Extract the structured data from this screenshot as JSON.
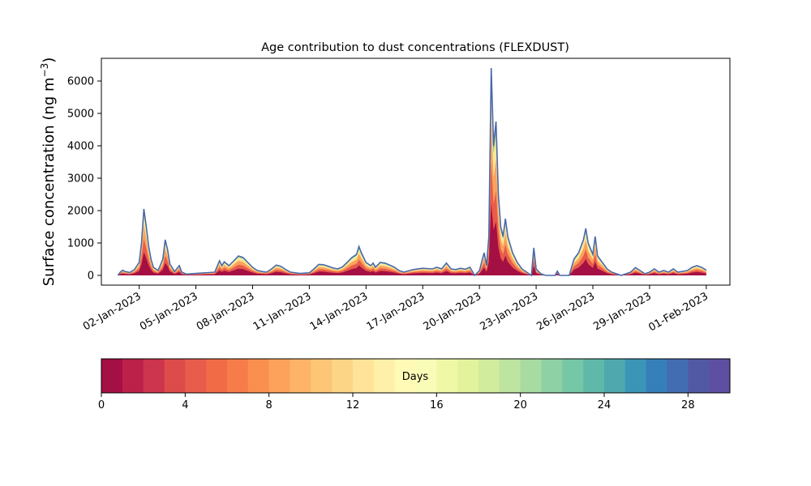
{
  "chart_data": {
    "type": "area",
    "title": "Age contribution to dust concentrations (FLEXDUST)",
    "xlabel": "",
    "ylabel_main": "Surface concentration (ng m",
    "ylabel_sup": "−3",
    "ylabel_close": ")",
    "ylim": [
      -300,
      6700
    ],
    "xlim": [
      "2022-12-31T00:00",
      "2023-02-02T06:00"
    ],
    "yticks": [
      0,
      1000,
      2000,
      3000,
      4000,
      5000,
      6000
    ],
    "xticks": [
      {
        "date": "2023-01-02",
        "label": "02-Jan-2023"
      },
      {
        "date": "2023-01-05",
        "label": "05-Jan-2023"
      },
      {
        "date": "2023-01-08",
        "label": "08-Jan-2023"
      },
      {
        "date": "2023-01-11",
        "label": "11-Jan-2023"
      },
      {
        "date": "2023-01-14",
        "label": "14-Jan-2023"
      },
      {
        "date": "2023-01-17",
        "label": "17-Jan-2023"
      },
      {
        "date": "2023-01-20",
        "label": "20-Jan-2023"
      },
      {
        "date": "2023-01-23",
        "label": "23-Jan-2023"
      },
      {
        "date": "2023-01-26",
        "label": "26-Jan-2023"
      },
      {
        "date": "2023-01-29",
        "label": "29-Jan-2023"
      },
      {
        "date": "2023-02-01",
        "label": "01-Feb-2023"
      }
    ],
    "total_series": {
      "name": "",
      "points": [
        [
          "2022-12-31T21:00",
          0
        ],
        [
          "2023-01-01T00:00",
          100
        ],
        [
          "2023-01-01T03:00",
          160
        ],
        [
          "2023-01-01T06:00",
          120
        ],
        [
          "2023-01-01T12:00",
          90
        ],
        [
          "2023-01-01T18:00",
          180
        ],
        [
          "2023-01-02T00:00",
          400
        ],
        [
          "2023-01-02T03:00",
          1000
        ],
        [
          "2023-01-02T06:00",
          2050
        ],
        [
          "2023-01-02T09:00",
          1500
        ],
        [
          "2023-01-02T12:00",
          900
        ],
        [
          "2023-01-02T15:00",
          500
        ],
        [
          "2023-01-02T18:00",
          250
        ],
        [
          "2023-01-03T00:00",
          150
        ],
        [
          "2023-01-03T06:00",
          500
        ],
        [
          "2023-01-03T09:00",
          1100
        ],
        [
          "2023-01-03T12:00",
          800
        ],
        [
          "2023-01-03T15:00",
          350
        ],
        [
          "2023-01-03T21:00",
          120
        ],
        [
          "2023-01-04T03:00",
          300
        ],
        [
          "2023-01-04T06:00",
          100
        ],
        [
          "2023-01-04T12:00",
          40
        ],
        [
          "2023-01-05T00:00",
          60
        ],
        [
          "2023-01-05T12:00",
          80
        ],
        [
          "2023-01-06T00:00",
          100
        ],
        [
          "2023-01-06T06:00",
          450
        ],
        [
          "2023-01-06T09:00",
          300
        ],
        [
          "2023-01-06T12:00",
          420
        ],
        [
          "2023-01-06T18:00",
          300
        ],
        [
          "2023-01-07T00:00",
          450
        ],
        [
          "2023-01-07T06:00",
          600
        ],
        [
          "2023-01-07T12:00",
          550
        ],
        [
          "2023-01-07T18:00",
          400
        ],
        [
          "2023-01-08T00:00",
          250
        ],
        [
          "2023-01-08T06:00",
          150
        ],
        [
          "2023-01-08T12:00",
          120
        ],
        [
          "2023-01-08T18:00",
          100
        ],
        [
          "2023-01-09T00:00",
          200
        ],
        [
          "2023-01-09T06:00",
          320
        ],
        [
          "2023-01-09T12:00",
          280
        ],
        [
          "2023-01-09T18:00",
          180
        ],
        [
          "2023-01-10T00:00",
          100
        ],
        [
          "2023-01-10T12:00",
          60
        ],
        [
          "2023-01-11T00:00",
          80
        ],
        [
          "2023-01-11T06:00",
          200
        ],
        [
          "2023-01-11T12:00",
          340
        ],
        [
          "2023-01-11T18:00",
          330
        ],
        [
          "2023-01-12T00:00",
          280
        ],
        [
          "2023-01-12T06:00",
          230
        ],
        [
          "2023-01-12T12:00",
          200
        ],
        [
          "2023-01-12T18:00",
          260
        ],
        [
          "2023-01-13T00:00",
          400
        ],
        [
          "2023-01-13T06:00",
          550
        ],
        [
          "2023-01-13T12:00",
          650
        ],
        [
          "2023-01-13T15:00",
          890
        ],
        [
          "2023-01-13T18:00",
          700
        ],
        [
          "2023-01-14T00:00",
          400
        ],
        [
          "2023-01-14T06:00",
          300
        ],
        [
          "2023-01-14T09:00",
          380
        ],
        [
          "2023-01-14T12:00",
          250
        ],
        [
          "2023-01-14T18:00",
          400
        ],
        [
          "2023-01-15T00:00",
          380
        ],
        [
          "2023-01-15T06:00",
          320
        ],
        [
          "2023-01-15T12:00",
          250
        ],
        [
          "2023-01-15T18:00",
          150
        ],
        [
          "2023-01-16T00:00",
          100
        ],
        [
          "2023-01-16T12:00",
          180
        ],
        [
          "2023-01-17T00:00",
          220
        ],
        [
          "2023-01-17T12:00",
          200
        ],
        [
          "2023-01-17T18:00",
          250
        ],
        [
          "2023-01-18T00:00",
          200
        ],
        [
          "2023-01-18T06:00",
          380
        ],
        [
          "2023-01-18T12:00",
          200
        ],
        [
          "2023-01-18T18:00",
          180
        ],
        [
          "2023-01-19T00:00",
          220
        ],
        [
          "2023-01-19T06:00",
          190
        ],
        [
          "2023-01-19T12:00",
          250
        ],
        [
          "2023-01-19T18:00",
          0
        ],
        [
          "2023-01-20T00:00",
          150
        ],
        [
          "2023-01-20T06:00",
          700
        ],
        [
          "2023-01-20T09:00",
          300
        ],
        [
          "2023-01-20T12:00",
          1200
        ],
        [
          "2023-01-20T15:00",
          6400
        ],
        [
          "2023-01-20T18:00",
          4000
        ],
        [
          "2023-01-20T21:00",
          4750
        ],
        [
          "2023-01-21T00:00",
          2500
        ],
        [
          "2023-01-21T03:00",
          1500
        ],
        [
          "2023-01-21T06:00",
          1200
        ],
        [
          "2023-01-21T09:00",
          1750
        ],
        [
          "2023-01-21T12:00",
          1200
        ],
        [
          "2023-01-21T18:00",
          700
        ],
        [
          "2023-01-22T00:00",
          400
        ],
        [
          "2023-01-22T06:00",
          200
        ],
        [
          "2023-01-22T12:00",
          100
        ],
        [
          "2023-01-22T18:00",
          0
        ],
        [
          "2023-01-22T21:00",
          850
        ],
        [
          "2023-01-23T00:00",
          200
        ],
        [
          "2023-01-23T06:00",
          50
        ],
        [
          "2023-01-23T12:00",
          0
        ],
        [
          "2023-01-24T00:00",
          0
        ],
        [
          "2023-01-24T03:00",
          130
        ],
        [
          "2023-01-24T06:00",
          0
        ],
        [
          "2023-01-24T18:00",
          0
        ],
        [
          "2023-01-25T00:00",
          500
        ],
        [
          "2023-01-25T06:00",
          700
        ],
        [
          "2023-01-25T12:00",
          1100
        ],
        [
          "2023-01-25T15:00",
          1450
        ],
        [
          "2023-01-25T18:00",
          1000
        ],
        [
          "2023-01-26T00:00",
          650
        ],
        [
          "2023-01-26T03:00",
          1200
        ],
        [
          "2023-01-26T06:00",
          600
        ],
        [
          "2023-01-26T12:00",
          400
        ],
        [
          "2023-01-26T18:00",
          200
        ],
        [
          "2023-01-27T00:00",
          100
        ],
        [
          "2023-01-27T12:00",
          0
        ],
        [
          "2023-01-28T00:00",
          100
        ],
        [
          "2023-01-28T06:00",
          240
        ],
        [
          "2023-01-28T12:00",
          150
        ],
        [
          "2023-01-28T18:00",
          50
        ],
        [
          "2023-01-29T00:00",
          100
        ],
        [
          "2023-01-29T06:00",
          200
        ],
        [
          "2023-01-29T12:00",
          100
        ],
        [
          "2023-01-29T18:00",
          150
        ],
        [
          "2023-01-30T00:00",
          100
        ],
        [
          "2023-01-30T06:00",
          200
        ],
        [
          "2023-01-30T12:00",
          100
        ],
        [
          "2023-01-31T00:00",
          150
        ],
        [
          "2023-01-31T06:00",
          250
        ],
        [
          "2023-01-31T12:00",
          300
        ],
        [
          "2023-01-31T18:00",
          250
        ],
        [
          "2023-02-01T00:00",
          160
        ]
      ]
    },
    "colorbar": {
      "label": "Days",
      "min": 0,
      "max": 30,
      "ticks": [
        0,
        4,
        8,
        12,
        16,
        20,
        24,
        28
      ],
      "colors": [
        "#a40f44",
        "#bb2149",
        "#cd344d",
        "#dd4b4b",
        "#e85c4b",
        "#f06b46",
        "#f67d4a",
        "#fa904f",
        "#fca25a",
        "#fdb468",
        "#fdc576",
        "#fdd587",
        "#fee398",
        "#fef0a8",
        "#fffbb7",
        "#f9fcb6",
        "#eff8a7",
        "#e3f39d",
        "#d1ec9c",
        "#bde4a1",
        "#a7dba2",
        "#8ed1a4",
        "#76c7a5",
        "#60b9a8",
        "#4ea8ae",
        "#3b95b7",
        "#3580ba",
        "#436db3",
        "#5159a5",
        "#5e4fa2"
      ]
    }
  }
}
